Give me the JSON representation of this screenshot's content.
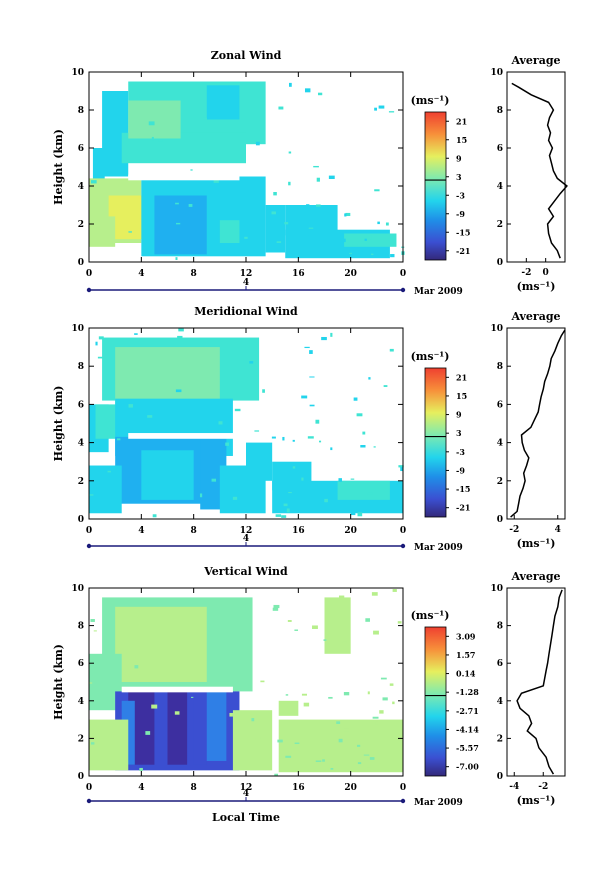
{
  "colormap": [
    "#3d2fa0",
    "#3b4fd1",
    "#2f7fe6",
    "#1fb0f0",
    "#22d4ec",
    "#3fe4d3",
    "#7eeab0",
    "#b7ef8c",
    "#e6ef5e",
    "#f7c640",
    "#f7903a",
    "#ef5032"
  ],
  "xaxis": {
    "ticks": [
      "0",
      "4",
      "8",
      "12",
      "16",
      "20",
      "0"
    ],
    "date_marker": "4",
    "date_label": "Mar 2009",
    "label": "Local Time"
  },
  "chart_data": [
    {
      "type": "heatmap",
      "title": "Zonal Wind",
      "ylabel": "Height (km)",
      "x_range": [
        0,
        24
      ],
      "y_range": [
        0,
        10
      ],
      "yticks": [
        "0",
        "2",
        "4",
        "6",
        "8",
        "10"
      ],
      "colorbar": {
        "unit": "(ms⁻¹)",
        "labels": [
          "21",
          "15",
          "9",
          "3",
          "-3",
          "-9",
          "-15",
          "-21"
        ],
        "range": [
          -24,
          24
        ]
      },
      "profile": {
        "title": "Average",
        "xlabel": "(ms⁻¹)",
        "xticks": [
          "-2",
          "0"
        ],
        "x_range": [
          -4,
          2
        ],
        "heights": [
          0.2,
          0.6,
          1.0,
          1.5,
          2.0,
          2.4,
          2.8,
          3.2,
          3.6,
          4.0,
          4.4,
          4.8,
          5.2,
          5.6,
          6.0,
          6.4,
          6.8,
          7.2,
          7.6,
          8.0,
          8.4,
          8.8,
          9.2,
          9.4
        ],
        "values": [
          1.5,
          1.2,
          0.6,
          0.3,
          0.2,
          0.8,
          0.3,
          0.9,
          1.5,
          2.2,
          1.2,
          0.8,
          0.6,
          0.4,
          0.7,
          0.3,
          0.5,
          0.2,
          0.4,
          0.8,
          0.3,
          -1.5,
          -2.8,
          -3.5
        ]
      }
    },
    {
      "type": "heatmap",
      "title": "Meridional Wind",
      "ylabel": "Height (km)",
      "x_range": [
        0,
        24
      ],
      "y_range": [
        0,
        10
      ],
      "yticks": [
        "0",
        "2",
        "4",
        "6",
        "8",
        "10"
      ],
      "colorbar": {
        "unit": "(ms⁻¹)",
        "labels": [
          "21",
          "15",
          "9",
          "3",
          "-3",
          "-9",
          "-15",
          "-21"
        ],
        "range": [
          -24,
          24
        ]
      },
      "profile": {
        "title": "Average",
        "xlabel": "(ms⁻¹)",
        "xticks": [
          "-2",
          "4"
        ],
        "x_range": [
          -3,
          5
        ],
        "heights": [
          0.1,
          0.4,
          0.8,
          1.2,
          1.6,
          2.0,
          2.4,
          2.8,
          3.2,
          3.6,
          4.0,
          4.4,
          4.8,
          5.2,
          5.6,
          6.0,
          6.4,
          6.8,
          7.2,
          7.6,
          8.0,
          8.4,
          8.8,
          9.2,
          9.6,
          9.9
        ],
        "values": [
          -2.5,
          -1.6,
          -1.4,
          -1.2,
          -0.8,
          -0.5,
          -0.7,
          -0.3,
          0.0,
          -0.6,
          -0.9,
          -1.0,
          0.3,
          0.8,
          1.3,
          1.5,
          1.7,
          2.0,
          2.2,
          2.6,
          2.9,
          3.1,
          3.6,
          4.0,
          4.5,
          5.0
        ]
      }
    },
    {
      "type": "heatmap",
      "title": "Vertical Wind",
      "ylabel": "Height (km)",
      "xlabel": "Local Time",
      "x_range": [
        0,
        24
      ],
      "y_range": [
        0,
        10
      ],
      "yticks": [
        "0",
        "2",
        "4",
        "6",
        "8",
        "10"
      ],
      "colorbar": {
        "unit": "(ms⁻¹)",
        "labels": [
          "3.09",
          "1.57",
          "0.14",
          "-1.28",
          "-2.71",
          "-4.14",
          "-5.57",
          "-7.00"
        ],
        "range": [
          -7.7,
          3.8
        ]
      },
      "profile": {
        "title": "Average",
        "xlabel": "(ms⁻¹)",
        "xticks": [
          "-4",
          "-2"
        ],
        "x_range": [
          -4.5,
          -0.5
        ],
        "heights": [
          0.1,
          0.5,
          1.0,
          1.5,
          2.0,
          2.4,
          2.8,
          3.2,
          3.6,
          4.0,
          4.4,
          4.8,
          5.2,
          5.6,
          6.0,
          6.5,
          7.0,
          7.5,
          8.0,
          8.5,
          9.0,
          9.5,
          9.9
        ],
        "values": [
          -1.3,
          -1.6,
          -1.8,
          -2.3,
          -2.5,
          -3.1,
          -2.8,
          -3.0,
          -3.6,
          -3.8,
          -3.5,
          -2.0,
          -1.9,
          -1.8,
          -1.7,
          -1.6,
          -1.5,
          -1.4,
          -1.3,
          -1.2,
          -1.0,
          -0.9,
          -0.7
        ]
      }
    }
  ]
}
